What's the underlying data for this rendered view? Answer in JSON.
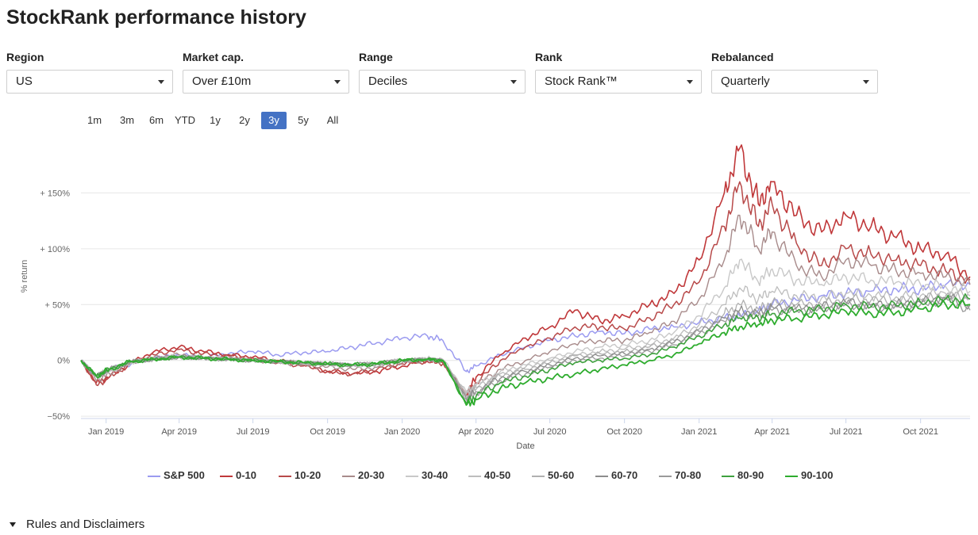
{
  "page": {
    "title": "StockRank performance history"
  },
  "filters": [
    {
      "label": "Region",
      "value": "US"
    },
    {
      "label": "Market cap.",
      "value": "Over £10m"
    },
    {
      "label": "Range",
      "value": "Deciles"
    },
    {
      "label": "Rank",
      "value": "Stock Rank™"
    },
    {
      "label": "Rebalanced",
      "value": "Quarterly"
    }
  ],
  "range_buttons": [
    {
      "label": "1m",
      "active": false
    },
    {
      "label": "3m",
      "active": false
    },
    {
      "label": "6m",
      "active": false
    },
    {
      "label": "YTD",
      "active": false
    },
    {
      "label": "1y",
      "active": false
    },
    {
      "label": "2y",
      "active": false
    },
    {
      "label": "3y",
      "active": true
    },
    {
      "label": "5y",
      "active": false
    },
    {
      "label": "All",
      "active": false
    }
  ],
  "footer": {
    "rules_label": "Rules and Disclaimers"
  },
  "chart_data": {
    "type": "line",
    "xlabel": "Date",
    "ylabel": "% return",
    "ylim": [
      -52,
      200
    ],
    "xlim": [
      "2018-12-01",
      "2021-12-01"
    ],
    "yticks": [
      {
        "value": -50,
        "label": "−50%"
      },
      {
        "value": 0,
        "label": "0%"
      },
      {
        "value": 50,
        "label": "+ 50%"
      },
      {
        "value": 100,
        "label": "+ 100%"
      },
      {
        "value": 150,
        "label": "+ 150%"
      }
    ],
    "xticks": [
      {
        "date": "2019-01-01",
        "label": "Jan 2019"
      },
      {
        "date": "2019-04-01",
        "label": "Apr 2019"
      },
      {
        "date": "2019-07-01",
        "label": "Jul 2019"
      },
      {
        "date": "2019-10-01",
        "label": "Oct 2019"
      },
      {
        "date": "2020-01-01",
        "label": "Jan 2020"
      },
      {
        "date": "2020-04-01",
        "label": "Apr 2020"
      },
      {
        "date": "2020-07-01",
        "label": "Jul 2020"
      },
      {
        "date": "2020-10-01",
        "label": "Oct 2020"
      },
      {
        "date": "2021-01-01",
        "label": "Jan 2021"
      },
      {
        "date": "2021-04-01",
        "label": "Apr 2021"
      },
      {
        "date": "2021-07-01",
        "label": "Jul 2021"
      },
      {
        "date": "2021-10-01",
        "label": "Oct 2021"
      }
    ],
    "grid": true,
    "legend_position": "bottom",
    "x": [
      "2018-12-01",
      "2018-12-20",
      "2019-01-05",
      "2019-02-01",
      "2019-03-01",
      "2019-04-01",
      "2019-05-01",
      "2019-06-01",
      "2019-07-01",
      "2019-08-01",
      "2019-09-01",
      "2019-10-01",
      "2019-11-01",
      "2019-12-01",
      "2020-01-01",
      "2020-02-01",
      "2020-02-20",
      "2020-03-20",
      "2020-04-01",
      "2020-05-01",
      "2020-06-01",
      "2020-07-01",
      "2020-08-01",
      "2020-09-01",
      "2020-10-01",
      "2020-11-01",
      "2020-12-01",
      "2021-01-01",
      "2021-02-01",
      "2021-02-20",
      "2021-03-15",
      "2021-04-01",
      "2021-05-01",
      "2021-06-01",
      "2021-07-01",
      "2021-08-01",
      "2021-09-01",
      "2021-10-01",
      "2021-11-01",
      "2021-12-01"
    ],
    "series": [
      {
        "name": "S&P 500",
        "color": "#9b9bf0",
        "width": 1.5,
        "values": [
          0,
          -15,
          -8,
          -3,
          2,
          5,
          3,
          6,
          8,
          5,
          7,
          8,
          12,
          16,
          20,
          22,
          18,
          -10,
          -5,
          5,
          12,
          18,
          22,
          26,
          24,
          28,
          30,
          34,
          38,
          40,
          45,
          50,
          54,
          58,
          60,
          62,
          64,
          64,
          68,
          68
        ]
      },
      {
        "name": "0-10",
        "color": "#c0383a",
        "width": 1.6,
        "values": [
          0,
          -20,
          -15,
          -2,
          8,
          12,
          8,
          5,
          3,
          0,
          -3,
          -10,
          -12,
          -10,
          -5,
          0,
          -2,
          -30,
          -15,
          5,
          20,
          30,
          45,
          35,
          40,
          50,
          60,
          90,
          150,
          190,
          140,
          160,
          130,
          115,
          130,
          120,
          110,
          100,
          95,
          75
        ]
      },
      {
        "name": "10-20",
        "color": "#b84a4a",
        "width": 1.5,
        "values": [
          0,
          -22,
          -15,
          -2,
          5,
          10,
          6,
          4,
          2,
          -2,
          -5,
          -10,
          -12,
          -8,
          -3,
          -1,
          -3,
          -32,
          -20,
          0,
          12,
          20,
          30,
          30,
          28,
          38,
          50,
          70,
          120,
          160,
          120,
          140,
          105,
          85,
          100,
          95,
          90,
          85,
          80,
          72
        ]
      },
      {
        "name": "20-30",
        "color": "#a88b8b",
        "width": 1.4,
        "values": [
          0,
          -18,
          -12,
          -2,
          3,
          5,
          3,
          2,
          0,
          -2,
          -4,
          -6,
          -8,
          -6,
          -2,
          0,
          -1,
          -30,
          -22,
          -8,
          0,
          8,
          15,
          18,
          18,
          25,
          35,
          55,
          90,
          130,
          100,
          115,
          85,
          75,
          90,
          85,
          80,
          78,
          75,
          68
        ]
      },
      {
        "name": "30-40",
        "color": "#c8c8c8",
        "width": 1.4,
        "values": [
          0,
          -15,
          -10,
          -2,
          2,
          4,
          3,
          2,
          0,
          -1,
          -3,
          -4,
          -5,
          -4,
          0,
          2,
          1,
          -28,
          -22,
          -10,
          -4,
          2,
          8,
          12,
          14,
          18,
          25,
          40,
          65,
          90,
          70,
          82,
          72,
          68,
          75,
          72,
          70,
          68,
          66,
          62
        ]
      },
      {
        "name": "40-50",
        "color": "#bdbdbd",
        "width": 1.3,
        "values": [
          0,
          -14,
          -9,
          -2,
          1,
          3,
          2,
          1,
          0,
          -1,
          -2,
          -3,
          -4,
          -3,
          0,
          1,
          0,
          -30,
          -24,
          -12,
          -6,
          0,
          5,
          8,
          10,
          14,
          20,
          32,
          50,
          65,
          55,
          62,
          58,
          56,
          60,
          58,
          57,
          58,
          60,
          58
        ]
      },
      {
        "name": "50-60",
        "color": "#b0b0b0",
        "width": 1.3,
        "values": [
          0,
          -14,
          -8,
          -1,
          1,
          3,
          2,
          1,
          0,
          -1,
          -2,
          -3,
          -4,
          -3,
          0,
          1,
          0,
          -32,
          -26,
          -14,
          -8,
          -2,
          4,
          6,
          8,
          12,
          18,
          28,
          42,
          50,
          46,
          52,
          50,
          50,
          55,
          54,
          53,
          55,
          58,
          55
        ]
      },
      {
        "name": "60-70",
        "color": "#8c8c8c",
        "width": 1.3,
        "values": [
          0,
          -14,
          -8,
          -1,
          1,
          3,
          2,
          1,
          0,
          -1,
          -2,
          -3,
          -4,
          -3,
          0,
          1,
          0,
          -34,
          -28,
          -16,
          -10,
          -4,
          2,
          4,
          6,
          10,
          16,
          26,
          38,
          45,
          42,
          48,
          47,
          48,
          52,
          50,
          50,
          52,
          56,
          50
        ]
      },
      {
        "name": "70-80",
        "color": "#9a9a9a",
        "width": 1.3,
        "values": [
          0,
          -14,
          -8,
          -1,
          1,
          3,
          2,
          1,
          0,
          -1,
          -2,
          -3,
          -4,
          -3,
          0,
          1,
          0,
          -35,
          -30,
          -18,
          -12,
          -6,
          0,
          2,
          4,
          8,
          14,
          24,
          35,
          42,
          40,
          45,
          45,
          46,
          50,
          48,
          48,
          50,
          55,
          45
        ]
      },
      {
        "name": "80-90",
        "color": "#3fa13f",
        "width": 1.6,
        "values": [
          0,
          -14,
          -8,
          -1,
          1,
          3,
          2,
          1,
          0,
          -1,
          -2,
          -3,
          -4,
          -3,
          0,
          1,
          0,
          -38,
          -32,
          -20,
          -14,
          -8,
          -2,
          0,
          2,
          5,
          12,
          22,
          32,
          38,
          38,
          42,
          44,
          46,
          50,
          48,
          49,
          52,
          55,
          55
        ]
      },
      {
        "name": "90-100",
        "color": "#2eac2e",
        "width": 1.8,
        "values": [
          0,
          -14,
          -8,
          -1,
          1,
          3,
          2,
          1,
          0,
          -1,
          -2,
          -3,
          -4,
          -3,
          0,
          1,
          0,
          -40,
          -35,
          -25,
          -20,
          -16,
          -12,
          -8,
          -4,
          0,
          5,
          15,
          25,
          30,
          32,
          36,
          38,
          40,
          44,
          42,
          43,
          46,
          50,
          50
        ]
      }
    ]
  }
}
